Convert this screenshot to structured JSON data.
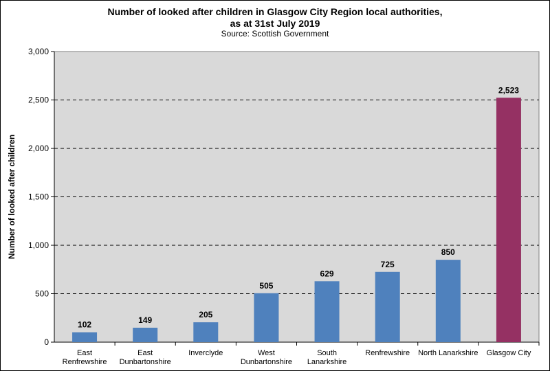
{
  "chart_data": {
    "type": "bar",
    "title_line1": "Number of looked after children in Glasgow City Region local authorities,",
    "title_line2": "as at 31st July 2019",
    "subtitle": "Source: Scottish Government",
    "ylabel": "Number of looked after children",
    "xlabel": "",
    "ylim": [
      0,
      3000
    ],
    "yticks": [
      0,
      500,
      1000,
      1500,
      2000,
      2500,
      3000
    ],
    "ytick_labels": [
      "0",
      "500",
      "1,000",
      "1,500",
      "2,000",
      "2,500",
      "3,000"
    ],
    "grid": "horizontal dashed",
    "legend": "none",
    "categories": [
      [
        "East",
        "Renfrewshire"
      ],
      [
        "East",
        "Dunbartonshire"
      ],
      [
        "Inverclyde"
      ],
      [
        "West",
        "Dunbartonshire"
      ],
      [
        "South",
        "Lanarkshire"
      ],
      [
        "Renfrewshire"
      ],
      [
        "North Lanarkshire"
      ],
      [
        "Glasgow City"
      ]
    ],
    "values": [
      102,
      149,
      205,
      505,
      629,
      725,
      850,
      2523
    ],
    "value_labels": [
      "102",
      "149",
      "205",
      "505",
      "629",
      "725",
      "850",
      "2,523"
    ],
    "colors": {
      "default_bar": "#4f81bd",
      "highlight_bar": "#953163",
      "plot_background": "#d9d9d9"
    },
    "highlight_index": 7
  }
}
